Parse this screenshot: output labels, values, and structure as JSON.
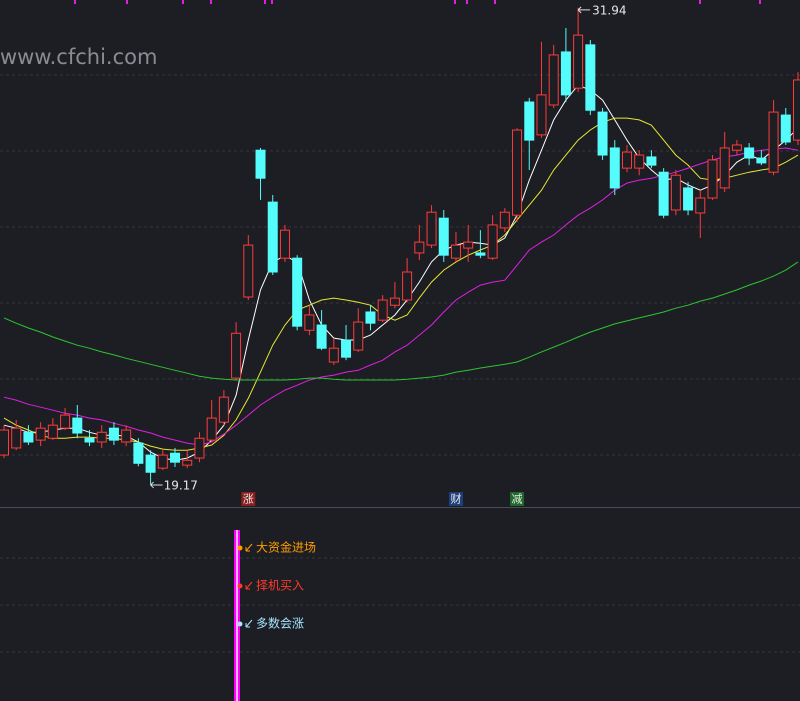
{
  "chart_data": {
    "type": "candlestick",
    "watermark": "www.cfchi.com",
    "categories": [
      null,
      null,
      null,
      null,
      null,
      null,
      null,
      null,
      null,
      null,
      null,
      null,
      null,
      null,
      null,
      null,
      null,
      null,
      null,
      null,
      null,
      null,
      null,
      null,
      null,
      null,
      null,
      null,
      null,
      null,
      null,
      null,
      null,
      null,
      null,
      null,
      null,
      null,
      null,
      null,
      null,
      null,
      null,
      null,
      null,
      null,
      null,
      null,
      null,
      null,
      null,
      null,
      null,
      null,
      null,
      null,
      null,
      null,
      null,
      null,
      null,
      null,
      null,
      null,
      null,
      null
    ],
    "open": [
      19.97,
      20.16,
      20.58,
      20.37,
      20.42,
      20.69,
      20.96,
      20.42,
      20.32,
      20.69,
      20.32,
      20.29,
      19.97,
      19.62,
      20.02,
      19.7,
      19.89,
      20.37,
      20.85,
      22.03,
      24.2,
      28.13,
      26.74,
      25.24,
      25.24,
      23.31,
      23.45,
      22.46,
      23.05,
      22.78,
      23.8,
      23.58,
      23.98,
      24.12,
      25.38,
      25.59,
      26.31,
      25.24,
      25.51,
      25.38,
      25.24,
      26.05,
      26.39,
      29.42,
      28.54,
      29.34,
      30.76,
      29.79,
      30.95,
      29.15,
      28.19,
      27.65,
      27.65,
      27.95,
      27.54,
      26.53,
      27.12,
      26.45,
      26.85,
      27.12,
      28.13,
      28.19,
      27.92,
      27.54,
      29.07,
      28.4
    ],
    "high": [
      20.77,
      20.91,
      20.77,
      20.85,
      20.96,
      21.23,
      21.31,
      20.64,
      20.77,
      20.85,
      20.77,
      20.42,
      20.1,
      20.1,
      20.16,
      20.1,
      20.58,
      21.44,
      21.71,
      23.53,
      25.86,
      28.19,
      26.93,
      26.13,
      25.32,
      23.98,
      23.85,
      23.1,
      23.45,
      23.9,
      23.98,
      24.25,
      24.6,
      25.24,
      26.13,
      26.66,
      26.53,
      25.94,
      26.13,
      25.99,
      26.39,
      26.58,
      28.72,
      29.53,
      31.03,
      30.95,
      31.4,
      31.94,
      31.08,
      29.26,
      28.4,
      28.27,
      28.13,
      28.13,
      27.65,
      27.6,
      27.28,
      27.06,
      28.0,
      28.62,
      28.4,
      28.32,
      28.13,
      29.47,
      29.26,
      30.22
    ],
    "low": [
      19.89,
      20.1,
      20.24,
      20.21,
      20.37,
      20.64,
      20.42,
      20.21,
      20.16,
      20.24,
      20.21,
      19.67,
      19.17,
      19.57,
      19.65,
      19.62,
      19.78,
      20.32,
      20.77,
      21.98,
      24.12,
      26.8,
      24.79,
      25.14,
      23.31,
      23.18,
      22.78,
      22.38,
      22.51,
      22.73,
      23.31,
      23.53,
      23.9,
      24.06,
      25.19,
      25.51,
      25.14,
      25.14,
      25.14,
      25.24,
      25.19,
      25.94,
      26.21,
      27.6,
      28.46,
      29.26,
      29.42,
      29.69,
      29.07,
      27.87,
      26.93,
      27.54,
      27.46,
      27.65,
      26.31,
      26.39,
      26.39,
      25.78,
      26.8,
      27.01,
      28.0,
      27.73,
      27.73,
      27.46,
      28.27,
      28.27
    ],
    "close": [
      20.64,
      20.69,
      20.32,
      20.69,
      20.77,
      21.04,
      20.56,
      20.32,
      20.58,
      20.37,
      20.64,
      19.75,
      19.51,
      19.97,
      19.78,
      19.83,
      20.42,
      20.96,
      21.52,
      23.23,
      25.59,
      27.38,
      24.87,
      25.99,
      23.42,
      23.72,
      22.83,
      22.83,
      22.59,
      23.53,
      23.5,
      24.12,
      24.17,
      24.87,
      25.67,
      26.47,
      25.32,
      25.59,
      25.67,
      25.32,
      26.13,
      26.47,
      28.67,
      28.4,
      29.61,
      30.68,
      29.61,
      31.21,
      29.2,
      28.0,
      27.12,
      28.08,
      28.0,
      27.73,
      26.39,
      27.46,
      26.53,
      26.85,
      27.87,
      28.19,
      28.27,
      27.92,
      27.79,
      29.15,
      28.35,
      30.01
    ],
    "up_color": "#ff3b3b",
    "down_color": "#54fcfc",
    "ylim": [
      18.58,
      32.15
    ],
    "series": [
      {
        "color": "#ffffff",
        "values": [
          20.77,
          20.69,
          20.58,
          20.58,
          20.64,
          20.69,
          20.69,
          20.58,
          20.5,
          20.5,
          20.48,
          20.32,
          20.05,
          19.89,
          19.83,
          19.89,
          20.05,
          20.37,
          20.77,
          21.57,
          23.05,
          24.39,
          25.14,
          25.3,
          25.14,
          24.12,
          23.45,
          23.1,
          23.05,
          23.05,
          23.18,
          23.45,
          23.72,
          24.12,
          24.6,
          25.14,
          25.46,
          25.59,
          25.67,
          25.64,
          25.59,
          25.78,
          26.39,
          27.33,
          28.13,
          28.94,
          29.47,
          29.87,
          29.74,
          29.47,
          28.94,
          28.4,
          27.92,
          27.6,
          27.33,
          27.38,
          27.2,
          27.06,
          27.2,
          27.46,
          27.81,
          28.0,
          27.87,
          28.13,
          28.4,
          28.72
        ]
      },
      {
        "color": "#e8e830",
        "values": [
          20.96,
          20.77,
          20.64,
          20.5,
          20.42,
          20.42,
          20.45,
          20.45,
          20.42,
          20.42,
          20.37,
          20.32,
          20.21,
          20.13,
          20.1,
          20.1,
          20.16,
          20.24,
          20.5,
          20.91,
          21.49,
          22.19,
          22.91,
          23.45,
          23.85,
          23.98,
          24.12,
          24.17,
          24.12,
          24.06,
          23.98,
          23.72,
          23.58,
          23.72,
          24.17,
          24.6,
          24.92,
          25.14,
          25.32,
          25.46,
          25.59,
          25.86,
          26.26,
          26.66,
          27.06,
          27.6,
          28.0,
          28.4,
          28.67,
          28.88,
          28.99,
          28.99,
          28.94,
          28.8,
          28.4,
          28.0,
          27.73,
          27.38,
          27.33,
          27.38,
          27.46,
          27.54,
          27.6,
          27.65,
          27.81,
          28.0
        ]
      },
      {
        "color": "#e020e0",
        "values": [
          21.52,
          21.44,
          21.33,
          21.25,
          21.17,
          21.09,
          21.04,
          20.96,
          20.91,
          20.82,
          20.74,
          20.64,
          20.56,
          20.45,
          20.37,
          20.29,
          20.24,
          20.32,
          20.53,
          20.77,
          21.04,
          21.31,
          21.52,
          21.71,
          21.84,
          21.98,
          22.06,
          22.11,
          22.19,
          22.24,
          22.38,
          22.51,
          22.73,
          22.91,
          23.18,
          23.45,
          23.8,
          24.12,
          24.33,
          24.52,
          24.6,
          24.65,
          25.05,
          25.46,
          25.67,
          25.86,
          26.13,
          26.39,
          26.58,
          26.8,
          27.06,
          27.25,
          27.33,
          27.38,
          27.46,
          27.54,
          27.65,
          27.76,
          27.87,
          27.95,
          28.0,
          28.08,
          28.13,
          28.16,
          28.19,
          28.13
        ]
      },
      {
        "color": "#2fc42f",
        "values": [
          23.64,
          23.5,
          23.37,
          23.26,
          23.13,
          23.02,
          22.91,
          22.83,
          22.73,
          22.65,
          22.56,
          22.48,
          22.4,
          22.32,
          22.24,
          22.16,
          22.08,
          22.03,
          22.0,
          21.98,
          21.98,
          21.98,
          21.98,
          21.98,
          22.0,
          22.03,
          22.03,
          22.0,
          21.98,
          21.98,
          21.98,
          21.98,
          21.98,
          22.0,
          22.03,
          22.06,
          22.11,
          22.19,
          22.24,
          22.3,
          22.35,
          22.4,
          22.46,
          22.59,
          22.73,
          22.86,
          22.99,
          23.13,
          23.26,
          23.37,
          23.48,
          23.56,
          23.64,
          23.72,
          23.8,
          23.9,
          23.98,
          24.09,
          24.17,
          24.28,
          24.39,
          24.52,
          24.63,
          24.76,
          24.92,
          25.14
        ]
      }
    ],
    "signals": [
      null,
      null,
      null,
      null,
      null,
      null,
      null,
      null,
      null,
      null,
      null,
      null,
      null,
      null,
      null,
      null,
      null,
      null,
      null,
      null,
      {
        "label": "涨",
        "color": "#8a1f1f"
      },
      null,
      null,
      null,
      null,
      null,
      null,
      null,
      null,
      null,
      null,
      null,
      null,
      null,
      null,
      null,
      null,
      {
        "label": "财",
        "color": "#1f3f7a"
      },
      null,
      null,
      null,
      null,
      {
        "label": "减",
        "color": "#1f6a2a"
      },
      null,
      null,
      null,
      null,
      null,
      null,
      null,
      null,
      null,
      null,
      null,
      null,
      null,
      null,
      null,
      null,
      null,
      null,
      null,
      null,
      null,
      null,
      null
    ]
  },
  "indicator_panel": {
    "labels": [
      {
        "text": "大资金进场",
        "color": "#ff9c00"
      },
      {
        "text": "择机买入",
        "color": "#ff3a2a"
      },
      {
        "text": "多数会涨",
        "color": "#a8e4ff"
      }
    ]
  }
}
